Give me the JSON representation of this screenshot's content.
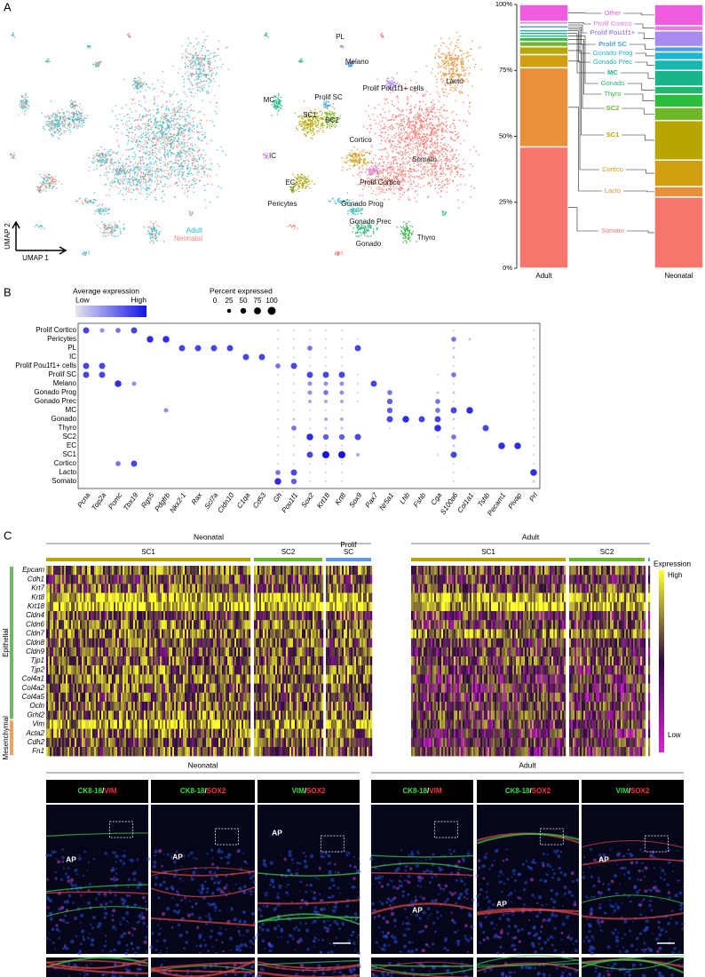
{
  "panel_a": {
    "label": "A",
    "umap_axes": {
      "x": "UMAP 1",
      "y": "UMAP 2"
    },
    "umap_legend": [
      {
        "name": "Adult",
        "color": "#1fc3cf"
      },
      {
        "name": "Neonatal",
        "color": "#f08a80"
      }
    ],
    "clusters": [
      "PL",
      "Melano",
      "Lacto",
      "Prolif Pou1f1+ cells",
      "MC",
      "Prolif SC",
      "SC1",
      "SC2",
      "IC",
      "Somato",
      "Cortico",
      "EC",
      "Prolif Cortico",
      "Pericytes",
      "Gonado Prog",
      "Gonado Prec",
      "Thyro",
      "Gonado"
    ],
    "composition": {
      "type": "bar",
      "stacked": true,
      "categories": [
        "Adult",
        "Neonatal"
      ],
      "ylim": [
        0,
        100
      ],
      "yticks": [
        {
          "value": 0,
          "label": "0%"
        },
        {
          "value": 25,
          "label": "25%"
        },
        {
          "value": 50,
          "label": "50%"
        },
        {
          "value": 75,
          "label": "75%"
        },
        {
          "value": 100,
          "label": "100%"
        }
      ],
      "series": [
        {
          "name": "Somato",
          "color": "#f8766d",
          "values": [
            46,
            27
          ]
        },
        {
          "name": "Lacto",
          "color": "#e8913a",
          "values": [
            30,
            4
          ]
        },
        {
          "name": "Cortico",
          "color": "#d19e10",
          "values": [
            5,
            10
          ]
        },
        {
          "name": "SC1",
          "color": "#b8a500",
          "values": [
            3,
            15
          ]
        },
        {
          "name": "SC2",
          "color": "#6fb82a",
          "values": [
            2,
            5
          ]
        },
        {
          "name": "Thyro",
          "color": "#2bbd3c",
          "values": [
            1.5,
            5
          ]
        },
        {
          "name": "Gonado",
          "color": "#1fb86e",
          "values": [
            1,
            3
          ]
        },
        {
          "name": "MC",
          "color": "#19b58a",
          "values": [
            1,
            6
          ]
        },
        {
          "name": "Gonado Prec",
          "color": "#18b8b0",
          "values": [
            1,
            4
          ]
        },
        {
          "name": "Gonado Prog",
          "color": "#1eb5d2",
          "values": [
            0.5,
            3
          ]
        },
        {
          "name": "Prolif SC",
          "color": "#4a9de8",
          "values": [
            1,
            2
          ]
        },
        {
          "name": "Prolif Pou1f1+",
          "color": "#a78bf0",
          "values": [
            0.5,
            6
          ]
        },
        {
          "name": "Prolif Cortico",
          "color": "#e879e8",
          "values": [
            1,
            2
          ]
        },
        {
          "name": "Other",
          "color": "#f05ce0",
          "values": [
            6.5,
            8
          ]
        }
      ]
    }
  },
  "panel_b": {
    "label": "B",
    "legend": {
      "color_title": "Average expression",
      "low": "Low",
      "high": "High",
      "size_title": "Percent expressed",
      "size_ticks": [
        0,
        25,
        50,
        75,
        100
      ]
    },
    "genes": [
      "Pcna",
      "Top2a",
      "Pomc",
      "Tbx19",
      "Rgs5",
      "Pdgfrb",
      "Nkx2-1",
      "Rax",
      "Scl7a",
      "Cldn10",
      "C1qa",
      "Cd53",
      "Gh",
      "Pou1f1",
      "Sox2",
      "Krt18",
      "Krt8",
      "Sox9",
      "Pax7",
      "Nr5a1",
      "Lhb",
      "Fshb",
      "Cga",
      "S100a6",
      "Col1a1",
      "Tshb",
      "Pecam1",
      "Plvap",
      "Prl"
    ],
    "cell_types": [
      "Prolif Cortico",
      "Pericytes",
      "PL",
      "IC",
      "Prolif Pou1f1+ cells",
      "Prolif SC",
      "Melano",
      "Gonado Prog",
      "Gonado Prec",
      "MC",
      "Gonado",
      "Thyro",
      "SC2",
      "EC",
      "SC1",
      "Cortico",
      "Lacto",
      "Somato"
    ],
    "percent_expressed": [
      [
        60,
        30,
        40,
        60,
        0,
        0,
        0,
        0,
        0,
        0,
        0,
        0,
        5,
        5,
        5,
        5,
        5,
        0,
        0,
        0,
        0,
        0,
        0,
        5,
        0,
        0,
        0,
        0,
        5
      ],
      [
        0,
        0,
        0,
        0,
        70,
        70,
        0,
        0,
        0,
        0,
        0,
        0,
        5,
        5,
        5,
        5,
        5,
        5,
        0,
        0,
        0,
        0,
        0,
        40,
        10,
        0,
        0,
        0,
        5
      ],
      [
        0,
        0,
        0,
        0,
        0,
        0,
        60,
        60,
        60,
        60,
        0,
        0,
        5,
        5,
        40,
        5,
        5,
        60,
        0,
        0,
        0,
        0,
        0,
        10,
        0,
        0,
        0,
        0,
        5
      ],
      [
        0,
        0,
        0,
        0,
        0,
        0,
        0,
        0,
        0,
        0,
        60,
        60,
        5,
        5,
        5,
        5,
        5,
        0,
        0,
        0,
        0,
        0,
        0,
        10,
        0,
        0,
        0,
        0,
        5
      ],
      [
        60,
        60,
        0,
        0,
        0,
        0,
        0,
        0,
        0,
        0,
        0,
        0,
        40,
        60,
        5,
        5,
        5,
        0,
        0,
        0,
        0,
        0,
        0,
        5,
        0,
        0,
        0,
        0,
        5
      ],
      [
        60,
        60,
        0,
        0,
        0,
        0,
        0,
        0,
        0,
        0,
        0,
        0,
        5,
        5,
        60,
        60,
        60,
        5,
        0,
        0,
        0,
        0,
        5,
        40,
        0,
        0,
        0,
        0,
        5
      ],
      [
        0,
        0,
        70,
        30,
        0,
        0,
        0,
        0,
        0,
        0,
        0,
        0,
        5,
        5,
        30,
        30,
        30,
        5,
        60,
        0,
        0,
        0,
        0,
        5,
        0,
        0,
        0,
        0,
        5
      ],
      [
        0,
        0,
        0,
        0,
        0,
        0,
        0,
        0,
        0,
        0,
        0,
        0,
        5,
        5,
        30,
        40,
        30,
        5,
        0,
        40,
        0,
        0,
        10,
        10,
        0,
        0,
        0,
        0,
        5
      ],
      [
        0,
        0,
        0,
        0,
        0,
        0,
        0,
        0,
        0,
        0,
        0,
        0,
        5,
        5,
        20,
        20,
        20,
        5,
        0,
        50,
        0,
        0,
        40,
        5,
        0,
        0,
        0,
        0,
        5
      ],
      [
        0,
        0,
        0,
        0,
        0,
        30,
        0,
        0,
        0,
        0,
        0,
        0,
        5,
        5,
        5,
        5,
        5,
        0,
        0,
        50,
        0,
        0,
        40,
        60,
        70,
        0,
        0,
        0,
        5
      ],
      [
        0,
        0,
        0,
        0,
        0,
        0,
        0,
        0,
        0,
        0,
        0,
        0,
        5,
        10,
        5,
        20,
        20,
        0,
        0,
        60,
        70,
        60,
        60,
        10,
        0,
        0,
        0,
        0,
        5
      ],
      [
        0,
        0,
        0,
        0,
        0,
        0,
        0,
        0,
        0,
        0,
        0,
        0,
        5,
        40,
        5,
        10,
        10,
        0,
        0,
        5,
        0,
        0,
        70,
        5,
        0,
        60,
        0,
        0,
        5
      ],
      [
        0,
        0,
        0,
        0,
        0,
        0,
        0,
        0,
        0,
        0,
        0,
        0,
        5,
        5,
        70,
        50,
        50,
        60,
        0,
        0,
        0,
        0,
        5,
        40,
        0,
        0,
        0,
        0,
        5
      ],
      [
        0,
        0,
        0,
        0,
        0,
        0,
        0,
        0,
        0,
        0,
        0,
        0,
        5,
        5,
        5,
        5,
        5,
        0,
        0,
        0,
        0,
        0,
        0,
        10,
        0,
        0,
        70,
        70,
        5
      ],
      [
        0,
        0,
        0,
        0,
        0,
        0,
        0,
        0,
        0,
        0,
        0,
        0,
        5,
        5,
        60,
        80,
        80,
        20,
        0,
        0,
        0,
        0,
        5,
        60,
        0,
        0,
        0,
        0,
        5
      ],
      [
        0,
        0,
        40,
        60,
        0,
        0,
        0,
        0,
        0,
        0,
        0,
        0,
        5,
        5,
        5,
        5,
        5,
        0,
        0,
        0,
        0,
        0,
        0,
        5,
        0,
        0,
        0,
        0,
        5
      ],
      [
        0,
        0,
        0,
        0,
        0,
        0,
        0,
        0,
        0,
        0,
        0,
        0,
        40,
        60,
        5,
        5,
        5,
        0,
        0,
        0,
        0,
        0,
        0,
        5,
        0,
        0,
        0,
        0,
        70
      ],
      [
        0,
        0,
        0,
        0,
        0,
        0,
        0,
        0,
        0,
        0,
        0,
        0,
        70,
        50,
        5,
        5,
        5,
        0,
        0,
        0,
        0,
        0,
        0,
        5,
        0,
        0,
        0,
        0,
        10
      ]
    ]
  },
  "panel_c": {
    "label": "C",
    "gene_groups": [
      {
        "name": "Epithelial",
        "genes": [
          "Epcam",
          "Cdh1",
          "Krt7",
          "Krt8",
          "Krt18",
          "Cldn4",
          "Cldn6",
          "Cldn7",
          "Cldn8",
          "Cldn9",
          "Tjp1",
          "Tjp2",
          "Col4a1",
          "Col4a2",
          "Col4a5",
          "Ocln",
          "Grhl2"
        ]
      },
      {
        "name": "Mesenchymal",
        "genes": [
          "Vim",
          "Acta2",
          "Cdh2",
          "Fn1"
        ]
      }
    ],
    "heatmaps": [
      {
        "title": "Neonatal",
        "groups": [
          [
            "SC1"
          ],
          [
            "SC2"
          ],
          [
            "Prolif",
            "SC"
          ]
        ]
      },
      {
        "title": "Adult",
        "groups": [
          [
            "SC1"
          ],
          [
            "SC2"
          ]
        ]
      }
    ],
    "legend": {
      "title": "Expression",
      "high": "High",
      "low": "Low"
    },
    "imaging": {
      "separator": "/",
      "region": "AP",
      "panels": [
        {
          "title": "Neonatal",
          "stains": [
            [
              "CK8-18",
              "VIM"
            ],
            [
              "CK8-18",
              "SOX2"
            ],
            [
              "VIM",
              "SOX2"
            ]
          ]
        },
        {
          "title": "Adult",
          "stains": [
            [
              "CK8-18",
              "VIM"
            ],
            [
              "CK8-18",
              "SOX2"
            ],
            [
              "VIM",
              "SOX2"
            ]
          ]
        }
      ]
    }
  }
}
